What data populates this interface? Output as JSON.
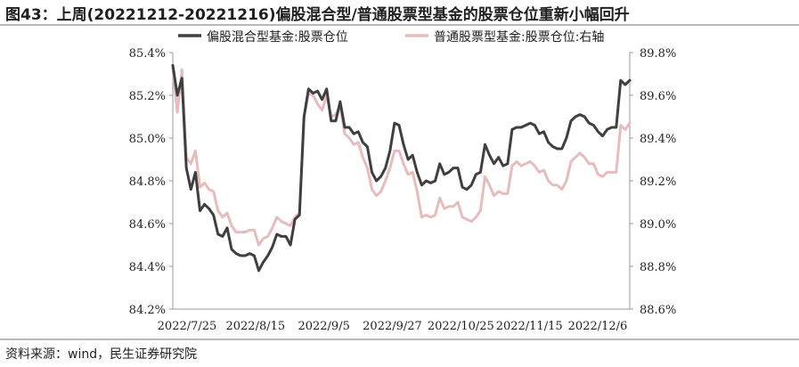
{
  "title": "图43：上周(20221212-20221216)偏股混合型/普通股票型基金的股票仓位重新小幅回升",
  "source": "资料来源：wind，民生证券研究院",
  "colors": {
    "primary": "#3f3f3f",
    "secondary": "#e6bcbc"
  },
  "chart_data": {
    "type": "line",
    "x_ticks": [
      "2022/7/25",
      "2022/8/15",
      "2022/9/5",
      "2022/9/27",
      "2022/10/25",
      "2022/11/15",
      "2022/12/6"
    ],
    "y_left": {
      "ylim": [
        84.2,
        85.4
      ],
      "ticks": [
        "84.2%",
        "84.4%",
        "84.6%",
        "84.8%",
        "85.0%",
        "85.2%",
        "85.4%"
      ]
    },
    "y_right": {
      "ylim": [
        88.6,
        89.8
      ],
      "ticks": [
        "88.6%",
        "88.8%",
        "89.0%",
        "89.2%",
        "89.4%",
        "89.6%",
        "89.8%"
      ]
    },
    "series": [
      {
        "name": "偏股混合型基金:股票仓位",
        "axis": "left",
        "color": "#3f3f3f",
        "values": [
          85.34,
          85.2,
          85.28,
          84.86,
          84.76,
          84.84,
          84.66,
          84.69,
          84.67,
          84.64,
          84.55,
          84.54,
          84.58,
          84.48,
          84.46,
          84.45,
          84.45,
          84.46,
          84.45,
          84.38,
          84.42,
          84.45,
          84.49,
          84.55,
          84.54,
          84.54,
          84.5,
          84.62,
          84.64,
          85.1,
          85.23,
          85.21,
          85.22,
          85.18,
          85.23,
          85.08,
          85.08,
          85.17,
          85.05,
          85.05,
          85.02,
          85.03,
          84.98,
          84.96,
          84.84,
          84.8,
          84.82,
          84.86,
          84.94,
          85.07,
          85.06,
          84.97,
          84.9,
          84.92,
          84.84,
          84.78,
          84.8,
          84.79,
          84.8,
          84.88,
          84.83,
          84.84,
          84.86,
          84.86,
          84.77,
          84.76,
          84.78,
          84.83,
          84.84,
          84.97,
          84.92,
          84.88,
          84.91,
          84.87,
          84.88,
          85.04,
          85.05,
          85.05,
          85.06,
          85.07,
          85.06,
          85.02,
          85.03,
          84.98,
          84.96,
          84.95,
          84.95,
          85.0,
          85.08,
          85.1,
          85.11,
          85.1,
          85.07,
          85.06,
          85.03,
          85.01,
          85.04,
          85.05,
          85.05,
          85.27,
          85.25,
          85.27
        ]
      },
      {
        "name": "普通股票型基金:股票仓位:右轴",
        "axis": "right",
        "color": "#e6bcbc",
        "values": [
          89.73,
          89.52,
          89.72,
          89.31,
          89.28,
          89.34,
          89.17,
          89.19,
          89.16,
          89.15,
          89.06,
          89.03,
          89.05,
          88.99,
          88.96,
          88.96,
          88.96,
          88.97,
          88.97,
          88.9,
          88.93,
          88.94,
          88.98,
          89.03,
          89.01,
          89.0,
          88.99,
          89.03,
          89.05,
          89.5,
          89.61,
          89.6,
          89.56,
          89.53,
          89.6,
          89.5,
          89.51,
          89.55,
          89.42,
          89.4,
          89.37,
          89.38,
          89.31,
          89.26,
          89.16,
          89.13,
          89.15,
          89.2,
          89.26,
          89.34,
          89.34,
          89.28,
          89.23,
          89.24,
          89.15,
          89.03,
          89.04,
          89.03,
          89.04,
          89.12,
          89.07,
          89.08,
          89.08,
          89.1,
          89.03,
          89.02,
          89.01,
          89.03,
          89.06,
          89.22,
          89.18,
          89.13,
          89.15,
          89.14,
          89.14,
          89.27,
          89.29,
          89.27,
          89.28,
          89.29,
          89.27,
          89.24,
          89.25,
          89.2,
          89.18,
          89.18,
          89.16,
          89.2,
          89.29,
          89.31,
          89.33,
          89.31,
          89.28,
          89.28,
          89.23,
          89.22,
          89.24,
          89.24,
          89.24,
          89.46,
          89.44,
          89.47
        ]
      }
    ],
    "legend_position": "top",
    "grid": false
  }
}
